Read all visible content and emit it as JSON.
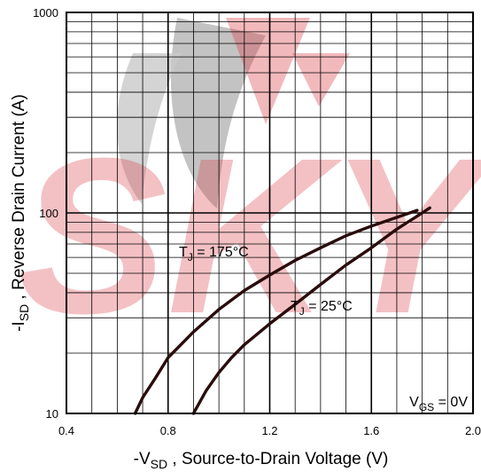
{
  "watermark": {
    "text": "SKY",
    "color": "#d9363e"
  },
  "chart_data": {
    "type": "line",
    "xscale": "linear",
    "yscale": "log",
    "xlim": [
      0.4,
      2.0
    ],
    "ylim": [
      10,
      1000
    ],
    "x_ticks": [
      "0.4",
      "0.8",
      "1.2",
      "1.6",
      "2.0"
    ],
    "y_ticks": [
      "10",
      "100",
      "1000"
    ],
    "grid": true,
    "xlabel": {
      "prefix": "-V",
      "sub": "SD",
      "rest": " , Source-to-Drain Voltage (V)"
    },
    "ylabel": {
      "prefix": "-I",
      "sub": "SD",
      "rest": " , Reverse Drain Current (A)"
    },
    "series": [
      {
        "label": {
          "prefix": "T",
          "sub": "J",
          "rest": " = 175°C"
        },
        "color": "#2a0c0c",
        "points": [
          [
            0.67,
            10
          ],
          [
            0.7,
            12
          ],
          [
            0.75,
            15
          ],
          [
            0.8,
            19
          ],
          [
            0.85,
            22
          ],
          [
            0.9,
            25.5
          ],
          [
            1.0,
            33
          ],
          [
            1.1,
            41
          ],
          [
            1.2,
            49
          ],
          [
            1.3,
            58
          ],
          [
            1.4,
            67
          ],
          [
            1.5,
            77
          ],
          [
            1.6,
            86
          ],
          [
            1.7,
            95
          ],
          [
            1.78,
            103
          ]
        ]
      },
      {
        "label": {
          "prefix": "T",
          "sub": "J",
          "rest": " = 25°C"
        },
        "color": "#2a0c0c",
        "points": [
          [
            0.9,
            10
          ],
          [
            0.95,
            13
          ],
          [
            1.0,
            16
          ],
          [
            1.05,
            19
          ],
          [
            1.1,
            22
          ],
          [
            1.2,
            28
          ],
          [
            1.3,
            35
          ],
          [
            1.4,
            44
          ],
          [
            1.5,
            55
          ],
          [
            1.6,
            67
          ],
          [
            1.7,
            83
          ],
          [
            1.8,
            100
          ],
          [
            1.83,
            106
          ]
        ]
      }
    ],
    "annotation": {
      "prefix": "V",
      "sub": "GS",
      "rest": " = 0V"
    }
  }
}
